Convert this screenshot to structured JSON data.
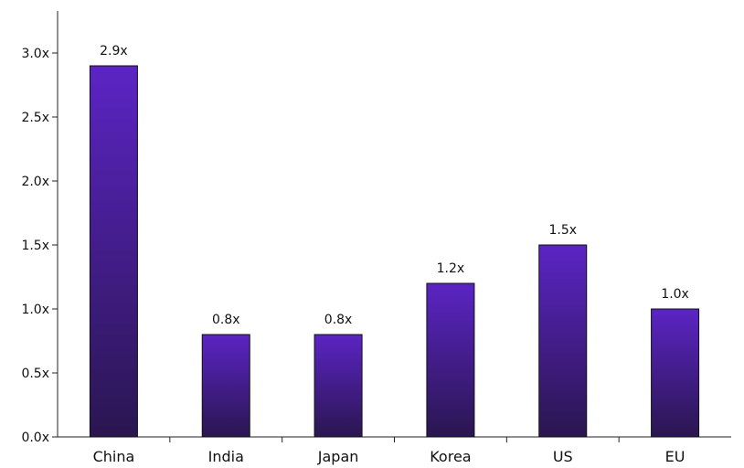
{
  "chart_data": {
    "type": "bar",
    "title": "",
    "xlabel": "",
    "ylabel": "",
    "categories": [
      "China",
      "India",
      "Japan",
      "Korea",
      "US",
      "EU"
    ],
    "values": [
      2.9,
      0.8,
      0.8,
      1.2,
      1.5,
      1.0
    ],
    "data_labels": [
      "2.9x",
      "0.8x",
      "0.8x",
      "1.2x",
      "1.5x",
      "1.0x"
    ],
    "ylim": [
      0,
      3.0
    ],
    "yticks": [
      0,
      0.5,
      1.0,
      1.5,
      2.0,
      2.5,
      3.0
    ],
    "ytick_labels": [
      "0.0x",
      "0.5x",
      "1.0x",
      "1.5x",
      "2.0x",
      "2.5x",
      "3.0x"
    ],
    "grid": false,
    "legend": "none",
    "colors": {
      "bar_top": "#5b24c4",
      "bar_bottom": "#2a1650",
      "axis": "#222222"
    }
  }
}
